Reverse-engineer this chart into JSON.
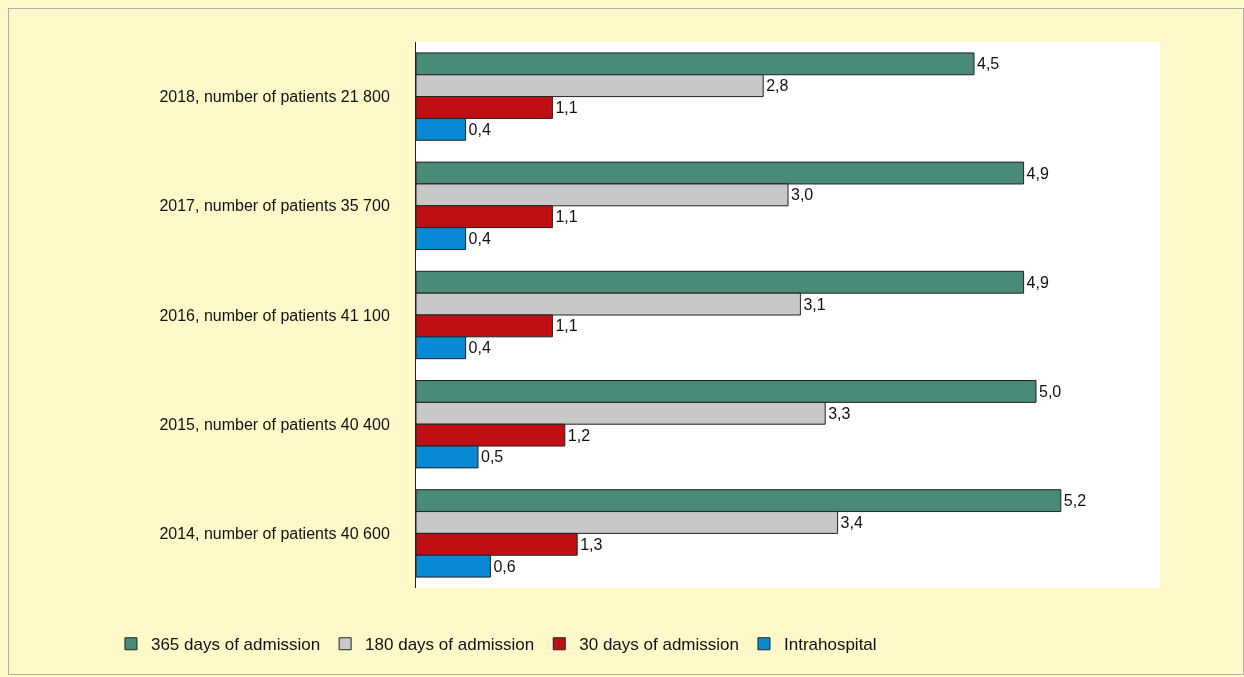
{
  "chart_data": {
    "type": "bar",
    "orientation": "horizontal",
    "categories": [
      "2018, number of patients 21 800",
      "2017, number of patients 35 700",
      "2016, number of patients 41 100",
      "2015, number of patients 40 400",
      "2014, number of patients 40 600"
    ],
    "series": [
      {
        "name": "365 days of admission",
        "color": "#4a8a78",
        "values": [
          4.5,
          4.9,
          4.9,
          5.0,
          5.2
        ],
        "value_labels": [
          "4,5",
          "4,9",
          "4,9",
          "5,0",
          "5,2"
        ]
      },
      {
        "name": "180 days of admission",
        "color": "#c8c8c8",
        "values": [
          2.8,
          3.0,
          3.1,
          3.3,
          3.4
        ],
        "value_labels": [
          "2,8",
          "3,0",
          "3,1",
          "3,3",
          "3,4"
        ]
      },
      {
        "name": "30 days of admission",
        "color": "#c00f14",
        "values": [
          1.1,
          1.1,
          1.1,
          1.2,
          1.3
        ],
        "value_labels": [
          "1,1",
          "1,1",
          "1,1",
          "1,2",
          "1,3"
        ]
      },
      {
        "name": "Intrahospital",
        "color": "#0a8ad4",
        "values": [
          0.4,
          0.4,
          0.4,
          0.5,
          0.6
        ],
        "value_labels": [
          "0,4",
          "0,4",
          "0,4",
          "0,5",
          "0,6"
        ]
      }
    ],
    "xlim": [
      0,
      6
    ],
    "tick_labels": "y",
    "grid": false,
    "legend": "bottom"
  }
}
